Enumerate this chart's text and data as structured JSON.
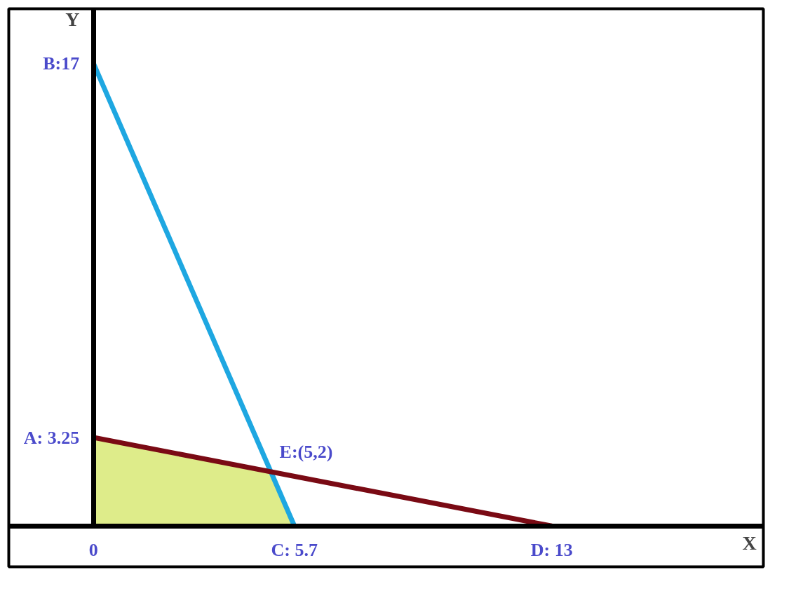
{
  "chart_data": {
    "type": "line",
    "xlabel": "X",
    "ylabel": "Y",
    "xlim": [
      -2.4,
      19
    ],
    "ylim": [
      -1.5,
      19
    ],
    "grid": false,
    "xticks": [
      0,
      {
        "value": 5.7,
        "label": "C: 5.7"
      },
      {
        "value": 13,
        "label": "D: 13"
      }
    ],
    "yticks": [
      {
        "value": 3.25,
        "label": "A: 3.25"
      },
      {
        "value": 17,
        "label": "B:17"
      }
    ],
    "series": [
      {
        "type": "area",
        "color": "#c8e03c",
        "x": [
          0,
          5,
          5.7
        ],
        "values": [
          3.25,
          2,
          0
        ]
      },
      {
        "color": "#1ea7e1",
        "x": [
          0,
          5.7
        ],
        "values": [
          17,
          0
        ]
      },
      {
        "color": "#7a0a14",
        "x": [
          0,
          13
        ],
        "values": [
          3.25,
          0
        ]
      }
    ],
    "annotations": [
      {
        "text": "E:(5,2)",
        "x": 5,
        "y": 2
      }
    ]
  }
}
